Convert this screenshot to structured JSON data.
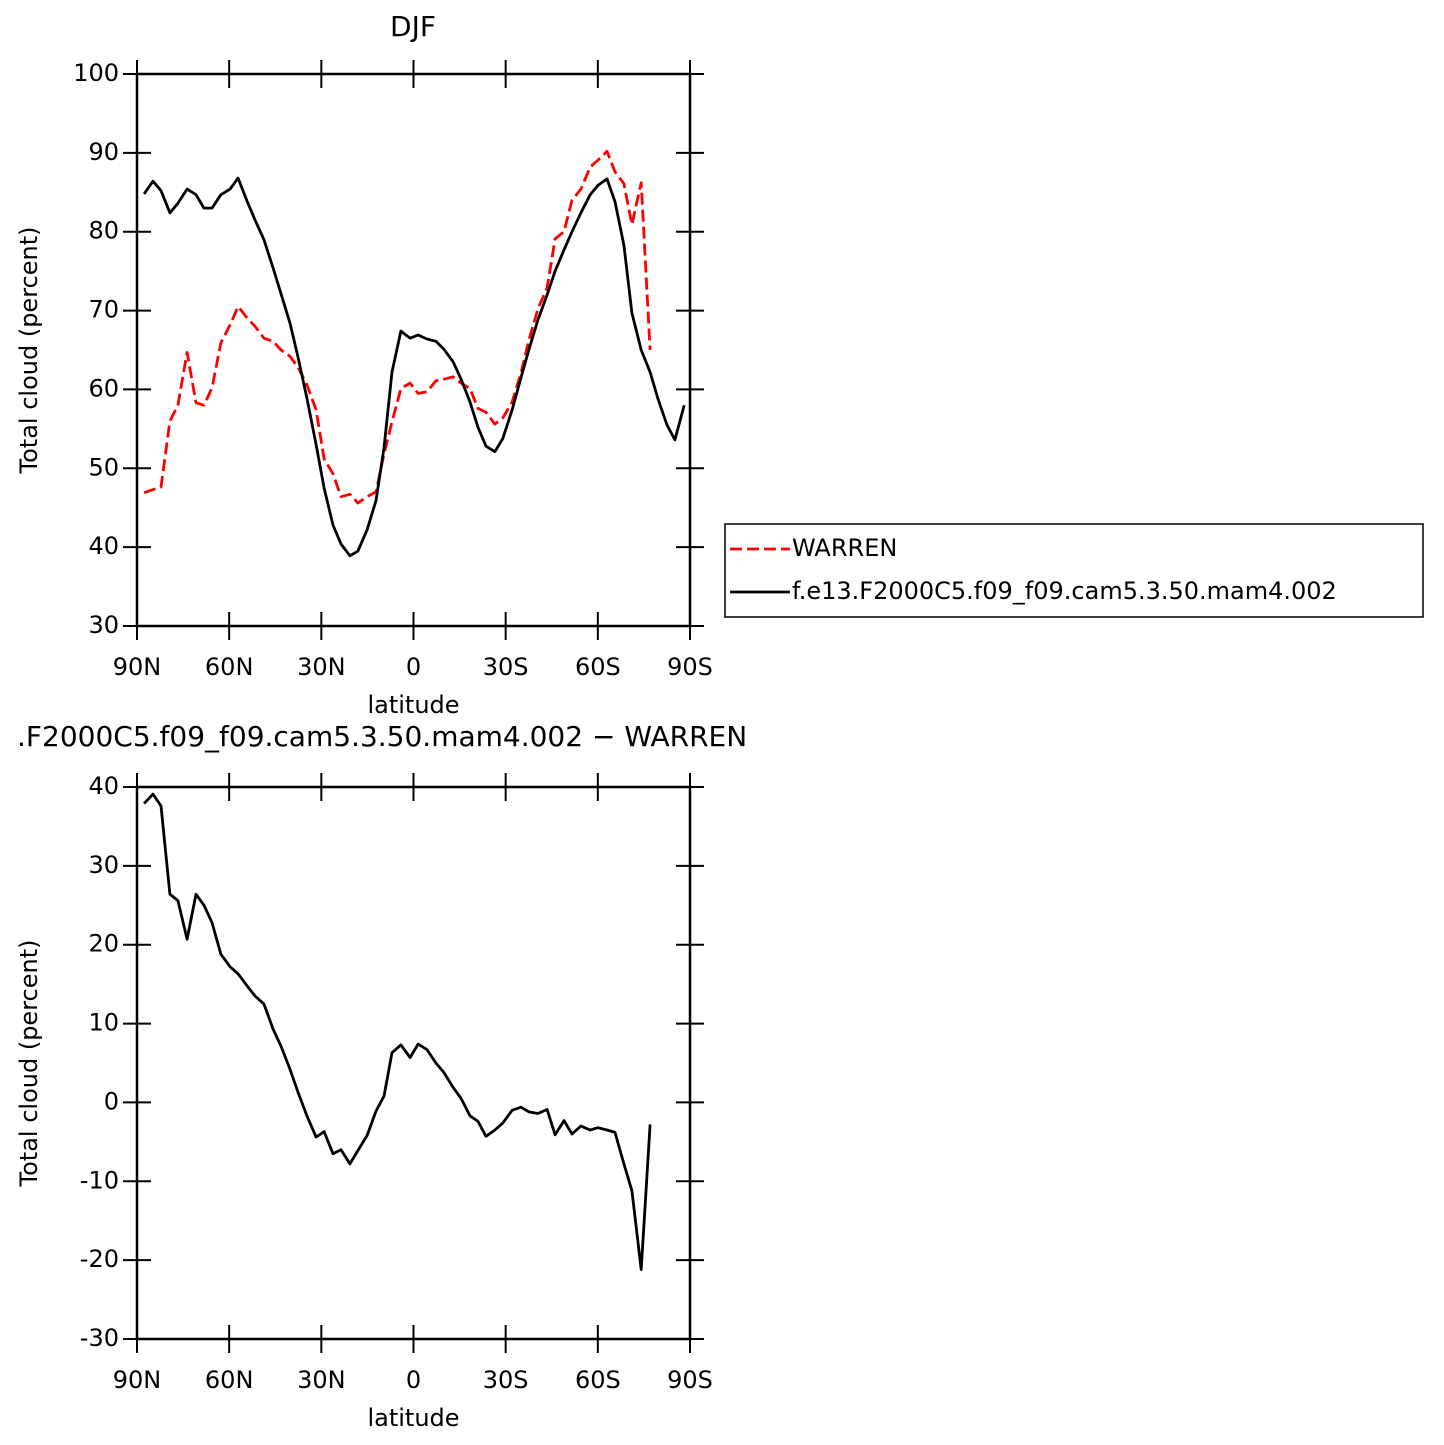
{
  "chart_data": [
    {
      "type": "line",
      "title": "DJF",
      "xlabel": "latitude",
      "ylabel": "Total cloud (percent)",
      "x": [
        87.7,
        84.8,
        82.2,
        79.3,
        76.7,
        73.7,
        70.8,
        68.2,
        65.6,
        62.7,
        59.7,
        57.1,
        54.2,
        51.6,
        48.7,
        45.7,
        43.1,
        40.2,
        37.6,
        34.7,
        31.7,
        29.1,
        26.2,
        23.6,
        20.7,
        18.1,
        15.1,
        12.2,
        9.6,
        7.0,
        4.1,
        1.1,
        -1.5,
        -4.4,
        -7.3,
        -9.9,
        -12.9,
        -15.5,
        -18.4,
        -21.0,
        -23.6,
        -26.5,
        -29.1,
        -32.1,
        -35.0,
        -37.6,
        -40.5,
        -43.5,
        -46.1,
        -49.0,
        -51.6,
        -54.5,
        -57.5,
        -60.1,
        -63.0,
        -65.6,
        -68.5,
        -71.1,
        -74.1,
        -77.0,
        -79.6,
        -82.5,
        -85.1,
        -88.1
      ],
      "series": [
        {
          "name": "WARREN",
          "color": "#ff0000",
          "linestyle": "dashed",
          "values": [
            46.9,
            47.3,
            47.6,
            56.0,
            58.0,
            64.7,
            58.3,
            58.0,
            60.2,
            65.9,
            68.2,
            70.5,
            69.1,
            68.0,
            66.5,
            66.1,
            65.0,
            64.2,
            62.8,
            60.6,
            57.4,
            51.2,
            49.3,
            46.4,
            46.7,
            45.6,
            46.4,
            47.0,
            51.8,
            55.9,
            60.1,
            60.8,
            59.5,
            59.7,
            61.1,
            61.3,
            61.6,
            60.8,
            60.1,
            57.6,
            57.1,
            55.6,
            56.4,
            58.4,
            62.1,
            66.3,
            70.2,
            72.9,
            79.1,
            80.0,
            84.0,
            85.4,
            88.2,
            89.1,
            90.2,
            87.6,
            86.1,
            80.9,
            86.2,
            65.0,
            null,
            null,
            null,
            null
          ]
        },
        {
          "name": "f.e13.F2000C5.f09_f09.cam5.3.50.mam4.002",
          "color": "#000000",
          "linestyle": "solid",
          "values": [
            84.8,
            86.4,
            85.2,
            82.4,
            83.6,
            85.4,
            84.7,
            83.0,
            83.0,
            84.7,
            85.4,
            86.8,
            83.9,
            81.5,
            79.0,
            75.4,
            72.1,
            68.4,
            64.1,
            58.9,
            53.0,
            47.5,
            42.8,
            40.4,
            38.9,
            39.5,
            42.2,
            45.9,
            52.6,
            62.2,
            67.4,
            66.5,
            66.9,
            66.4,
            66.1,
            65.1,
            63.5,
            61.3,
            58.4,
            55.2,
            52.8,
            52.1,
            53.8,
            57.4,
            61.5,
            65.1,
            68.8,
            72.0,
            75.0,
            77.7,
            80.0,
            82.4,
            84.7,
            85.9,
            86.7,
            83.8,
            78.3,
            69.7,
            65.0,
            62.2,
            58.8,
            55.5,
            53.6,
            58.0
          ]
        }
      ],
      "xlim": [
        90,
        -90
      ],
      "xticks": [
        {
          "value": 90,
          "label": "90N"
        },
        {
          "value": 60,
          "label": "60N"
        },
        {
          "value": 30,
          "label": "30N"
        },
        0,
        {
          "value": -30,
          "label": "30S"
        },
        {
          "value": -60,
          "label": "60S"
        },
        {
          "value": -90,
          "label": "90S"
        }
      ],
      "ylim": [
        30,
        100
      ],
      "yticks": [
        30,
        40,
        50,
        60,
        70,
        80,
        90,
        100
      ],
      "legend": "outside right"
    },
    {
      "type": "line",
      "title": ".F2000C5.f09_f09.cam5.3.50.mam4.002 − WARREN",
      "xlabel": "latitude",
      "ylabel": "Total cloud (percent)",
      "x": [
        87.7,
        84.8,
        82.2,
        79.3,
        76.7,
        73.7,
        70.8,
        68.2,
        65.6,
        62.7,
        59.7,
        57.1,
        54.2,
        51.6,
        48.7,
        45.7,
        43.1,
        40.2,
        37.6,
        34.7,
        31.7,
        29.1,
        26.2,
        23.6,
        20.7,
        18.1,
        15.1,
        12.2,
        9.6,
        7.0,
        4.1,
        1.1,
        -1.5,
        -4.4,
        -7.3,
        -9.9,
        -12.9,
        -15.5,
        -18.4,
        -21.0,
        -23.6,
        -26.5,
        -29.1,
        -32.1,
        -35.0,
        -37.6,
        -40.5,
        -43.5,
        -46.1,
        -49.0,
        -51.6,
        -54.5,
        -57.5,
        -60.1,
        -63.0,
        -65.6,
        -68.5,
        -71.1,
        -74.1,
        -77.0,
        -79.6,
        -82.5,
        -85.1,
        -88.1
      ],
      "series": [
        {
          "color": "#000000",
          "linestyle": "solid",
          "values": [
            37.9,
            39.1,
            37.6,
            26.4,
            25.6,
            20.7,
            26.4,
            25.0,
            22.8,
            18.8,
            17.2,
            16.3,
            14.8,
            13.5,
            12.5,
            9.3,
            7.1,
            4.2,
            1.3,
            -1.7,
            -4.4,
            -3.7,
            -6.5,
            -6.0,
            -7.8,
            -6.1,
            -4.2,
            -1.1,
            0.8,
            6.3,
            7.3,
            5.7,
            7.4,
            6.7,
            5.0,
            3.8,
            1.9,
            0.5,
            -1.7,
            -2.4,
            -4.3,
            -3.5,
            -2.6,
            -1.0,
            -0.6,
            -1.2,
            -1.4,
            -0.9,
            -4.1,
            -2.3,
            -4.0,
            -3.0,
            -3.5,
            -3.2,
            -3.5,
            -3.8,
            -7.8,
            -11.2,
            -21.2,
            -2.8,
            null,
            null,
            null,
            null
          ]
        }
      ],
      "xlim": [
        90,
        -90
      ],
      "xticks": [
        {
          "value": 90,
          "label": "90N"
        },
        {
          "value": 60,
          "label": "60N"
        },
        {
          "value": 30,
          "label": "30N"
        },
        0,
        {
          "value": -30,
          "label": "30S"
        },
        {
          "value": -60,
          "label": "60S"
        },
        {
          "value": -90,
          "label": "90S"
        }
      ],
      "ylim": [
        -30,
        40
      ],
      "yticks": [
        -30,
        -20,
        -10,
        0,
        10,
        20,
        30,
        40
      ]
    }
  ]
}
